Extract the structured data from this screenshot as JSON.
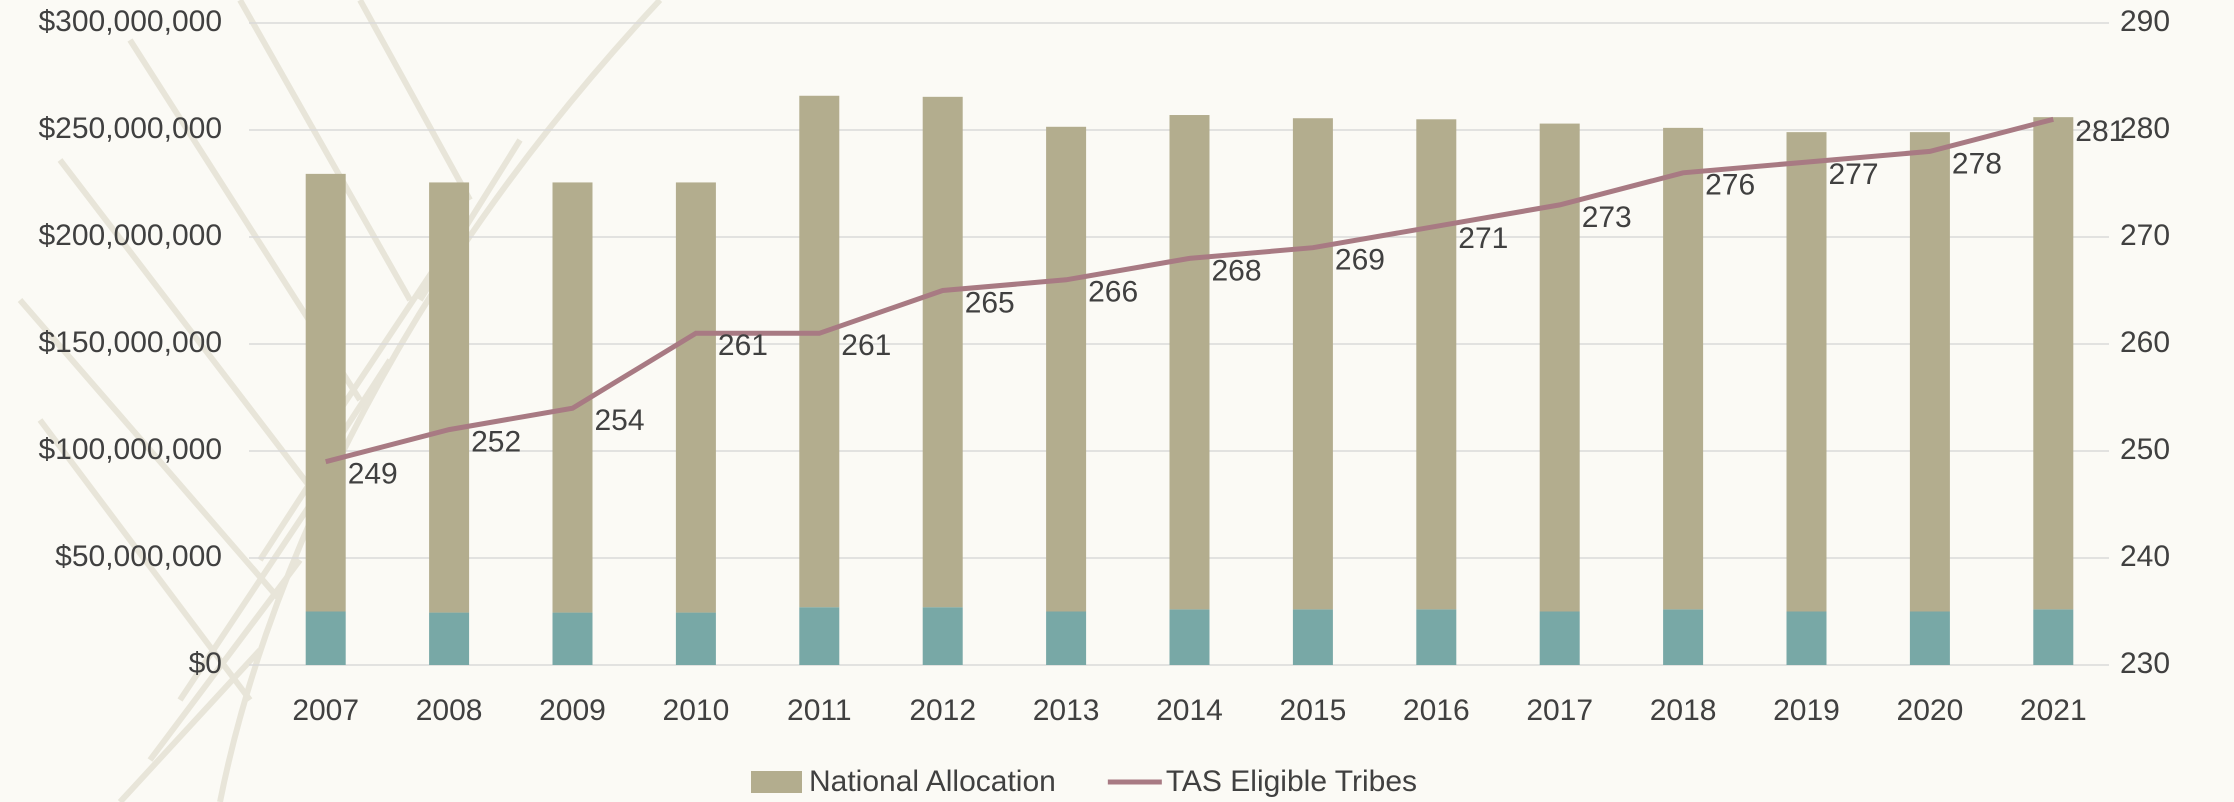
{
  "chart_data": {
    "type": "bar",
    "categories": [
      "2007",
      "2008",
      "2009",
      "2010",
      "2011",
      "2012",
      "2013",
      "2014",
      "2015",
      "2016",
      "2017",
      "2018",
      "2019",
      "2020",
      "2021"
    ],
    "stacked": true,
    "series": [
      {
        "color": "#78a8a6",
        "values": [
          25000000,
          24500000,
          24500000,
          24500000,
          27000000,
          27000000,
          25000000,
          26000000,
          26000000,
          26000000,
          25000000,
          26000000,
          25000000,
          25000000,
          26000000
        ]
      },
      {
        "name": "National Allocation",
        "color": "#b3ad8e",
        "values": [
          204500000,
          201000000,
          201000000,
          201000000,
          239000000,
          238500000,
          226500000,
          231000000,
          229500000,
          229000000,
          228000000,
          225000000,
          224000000,
          224000000,
          230000000
        ]
      },
      {
        "name": "TAS Eligible Tribes",
        "type": "line",
        "axis": "y2",
        "color": "#a87a83",
        "values": [
          249,
          252,
          254,
          261,
          261,
          265,
          266,
          268,
          269,
          271,
          273,
          276,
          277,
          278,
          281
        ]
      }
    ],
    "ylim": [
      0,
      300000000
    ],
    "yticks": [
      {
        "value": 0,
        "label": "$0"
      },
      {
        "value": 50000000,
        "label": "$50,000,000"
      },
      {
        "value": 100000000,
        "label": "$100,000,000"
      },
      {
        "value": 150000000,
        "label": "$150,000,000"
      },
      {
        "value": 200000000,
        "label": "$200,000,000"
      },
      {
        "value": 250000000,
        "label": "$250,000,000"
      },
      {
        "value": 300000000,
        "label": "$300,000,000"
      }
    ],
    "y2lim": [
      230,
      290
    ],
    "y2ticks": [
      230,
      240,
      250,
      260,
      270,
      280,
      290
    ],
    "grid": true,
    "legend": "bottom"
  }
}
